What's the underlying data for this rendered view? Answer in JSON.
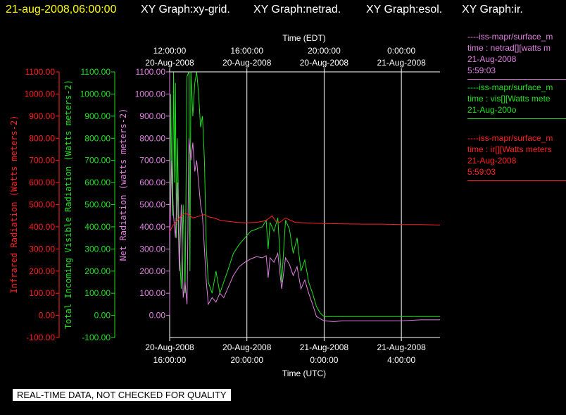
{
  "header": {
    "date": "21-aug-2008,06:00:00",
    "tabs": [
      "XY Graph:xy-grid.",
      "XY Graph:netrad.",
      "XY Graph:esol.",
      "XY Graph:ir."
    ]
  },
  "colors": {
    "ir": "#ff2020",
    "vis": "#20e020",
    "net": "#e080e0",
    "axis": "#ffffff"
  },
  "legend": [
    {
      "lines": [
        "----iss-mapr/surface_m",
        "time : netrad[][watts m",
        "21-Aug-2008",
        "5:59:03"
      ],
      "color": "#e080e0"
    },
    {
      "lines": [
        "----iss-mapr/surface_m",
        "time : vis[][Watts mete",
        "21-Aug-200o"
      ],
      "color": "#20e020"
    },
    {
      "lines": [
        "----iss-mapr/surface_m",
        "time : ir[][Watts meters",
        "21-Aug-2008",
        "5:59:03"
      ],
      "color": "#ff2020"
    }
  ],
  "banner": "REAL-TIME DATA, NOT CHECKED FOR QUALITY",
  "chart_data": {
    "type": "line",
    "top_axis": {
      "title": "Time (EDT)",
      "ticks": [
        {
          "t": 0,
          "l1": "12:00:00",
          "l2": "20-Aug-2008"
        },
        {
          "t": 4,
          "l1": "16:00:00",
          "l2": "20-Aug-2008"
        },
        {
          "t": 8,
          "l1": "20:00:00",
          "l2": "20-Aug-2008"
        },
        {
          "t": 12,
          "l1": "0:00:00",
          "l2": "21-Aug-2008"
        }
      ]
    },
    "bottom_axis": {
      "title": "Time (UTC)",
      "ticks": [
        {
          "t": 0,
          "l1": "20-Aug-2008",
          "l2": "16:00:00"
        },
        {
          "t": 4,
          "l1": "20-Aug-2008",
          "l2": "20:00:00"
        },
        {
          "t": 8,
          "l1": "21-Aug-2008",
          "l2": "0:00:00"
        },
        {
          "t": 12,
          "l1": "21-Aug-2008",
          "l2": "4:00:00"
        }
      ]
    },
    "xlim": [
      0,
      14
    ],
    "ylim": [
      -100,
      1100
    ],
    "y_ticks": [
      "1100.00",
      "1000.00",
      "900.00",
      "800.00",
      "700.00",
      "600.00",
      "500.00",
      "400.00",
      "300.00",
      "200.00",
      "100.00",
      "0.00",
      "-100.00"
    ],
    "y_ticks_net": [
      "1100.00",
      "1000.00",
      "900.00",
      "800.00",
      "700.00",
      "600.00",
      "500.00",
      "400.00",
      "300.00",
      "200.00",
      "100.00",
      "0.00"
    ],
    "ylabel_ir": "Infrared Radiation (Watts meters-2)",
    "ylabel_vis": "Total Incoming Visible Radiation (Watts meters-2)",
    "ylabel_net": "Net Radiation (watts meters-2)",
    "series": [
      {
        "name": "ir",
        "x": [
          0,
          0.1,
          0.2,
          0.3,
          0.4,
          0.5,
          0.6,
          0.8,
          1.0,
          1.2,
          1.4,
          1.6,
          1.8,
          2.0,
          2.3,
          2.6,
          3.0,
          3.5,
          4.0,
          4.5,
          5.0,
          5.3,
          5.5,
          5.7,
          6.0,
          6.5,
          7.0,
          7.5,
          8.0,
          9.0,
          10.0,
          11.0,
          12.0,
          13.0,
          14.0
        ],
        "y": [
          375,
          395,
          410,
          420,
          430,
          440,
          450,
          460,
          455,
          440,
          445,
          450,
          455,
          445,
          440,
          430,
          425,
          420,
          418,
          420,
          428,
          450,
          425,
          420,
          440,
          420,
          418,
          416,
          415,
          413,
          412,
          412,
          410,
          410,
          408
        ]
      },
      {
        "name": "vis",
        "x": [
          0,
          0.05,
          0.1,
          0.15,
          0.2,
          0.25,
          0.3,
          0.35,
          0.4,
          0.5,
          0.6,
          0.7,
          0.8,
          0.9,
          1.0,
          1.05,
          1.1,
          1.2,
          1.3,
          1.4,
          1.5,
          1.6,
          1.7,
          1.8,
          1.9,
          2.0,
          2.2,
          2.4,
          2.6,
          2.8,
          3.0,
          3.3,
          3.6,
          3.9,
          4.2,
          4.5,
          4.8,
          5.0,
          5.1,
          5.2,
          5.4,
          5.6,
          5.8,
          6.0,
          6.2,
          6.4,
          6.6,
          6.8,
          7.0,
          7.2,
          7.4,
          7.6,
          7.8,
          8.0,
          8.5,
          9.0,
          10,
          11,
          12,
          13,
          14
        ],
        "y": [
          30,
          1000,
          700,
          450,
          1100,
          600,
          1050,
          350,
          800,
          300,
          120,
          500,
          100,
          1080,
          1100,
          200,
          1100,
          900,
          1050,
          1100,
          1000,
          850,
          900,
          700,
          300,
          150,
          100,
          200,
          100,
          150,
          200,
          280,
          320,
          350,
          380,
          390,
          400,
          430,
          300,
          420,
          380,
          440,
          150,
          430,
          390,
          280,
          350,
          200,
          250,
          150,
          100,
          40,
          10,
          -5,
          -5,
          -5,
          -5,
          -5,
          -5,
          -5,
          -5
        ]
      },
      {
        "name": "net",
        "x": [
          0,
          0.1,
          0.2,
          0.3,
          0.4,
          0.5,
          0.6,
          0.7,
          0.8,
          0.9,
          1.0,
          1.1,
          1.2,
          1.3,
          1.4,
          1.5,
          1.6,
          1.7,
          1.8,
          1.9,
          2.0,
          2.2,
          2.4,
          2.6,
          2.8,
          3.0,
          3.3,
          3.6,
          3.9,
          4.2,
          4.5,
          4.8,
          5.0,
          5.1,
          5.2,
          5.4,
          5.6,
          5.8,
          6.0,
          6.2,
          6.4,
          6.6,
          6.8,
          7.0,
          7.2,
          7.4,
          7.6,
          7.8,
          8.0,
          8.5,
          9,
          10,
          11,
          12,
          13,
          14
        ],
        "y": [
          300,
          700,
          450,
          350,
          600,
          200,
          500,
          80,
          150,
          50,
          800,
          700,
          780,
          650,
          700,
          600,
          500,
          450,
          300,
          150,
          50,
          80,
          60,
          100,
          80,
          120,
          180,
          220,
          240,
          255,
          265,
          260,
          270,
          170,
          260,
          240,
          280,
          120,
          260,
          230,
          180,
          220,
          120,
          160,
          100,
          50,
          -5,
          -15,
          -25,
          -28,
          -25,
          -25,
          -25,
          -25,
          -20,
          -20
        ]
      }
    ]
  }
}
